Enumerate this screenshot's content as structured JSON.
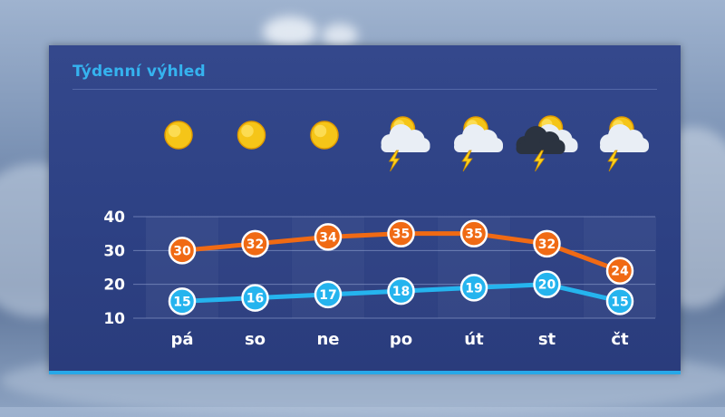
{
  "title": "Týdenní výhled",
  "forecast": [
    {
      "day": "pá",
      "icon": "sun-icon"
    },
    {
      "day": "so",
      "icon": "sun-icon"
    },
    {
      "day": "ne",
      "icon": "sun-icon"
    },
    {
      "day": "po",
      "icon": "thunderstorm-sun-cloud-icon"
    },
    {
      "day": "út",
      "icon": "thunderstorm-sun-cloud-icon"
    },
    {
      "day": "st",
      "icon": "thunderstorm-dark-cloud-icon"
    },
    {
      "day": "čt",
      "icon": "thunderstorm-sun-cloud-icon"
    }
  ],
  "chart_data": {
    "type": "line",
    "categories": [
      "pá",
      "so",
      "ne",
      "po",
      "út",
      "st",
      "čt"
    ],
    "series": [
      {
        "values": [
          30,
          32,
          34,
          35,
          35,
          32,
          24
        ],
        "color": "#f06a14"
      },
      {
        "values": [
          15,
          16,
          17,
          18,
          19,
          20,
          15
        ],
        "color": "#25b4ee"
      }
    ],
    "yticks": [
      10,
      20,
      30,
      40
    ],
    "ylim": [
      10,
      40
    ],
    "grid": true,
    "title": "Týdenní výhled"
  }
}
